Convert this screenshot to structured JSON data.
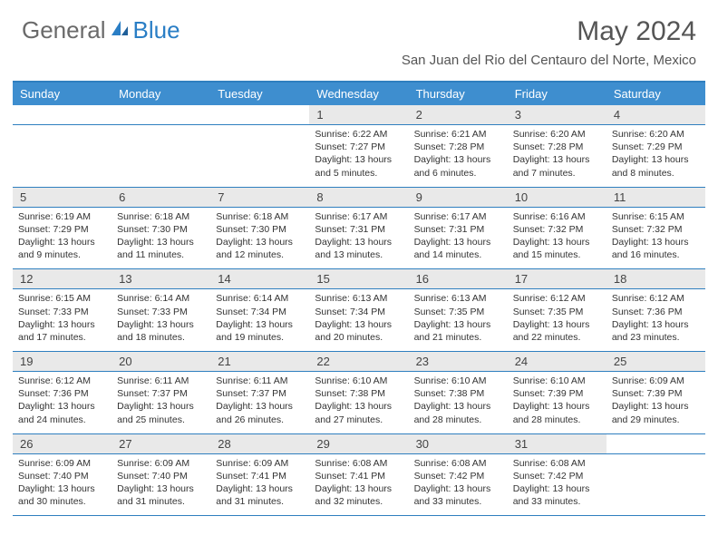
{
  "logo": {
    "text1": "General",
    "text2": "Blue"
  },
  "title": "May 2024",
  "location": "San Juan del Rio del Centauro del Norte, Mexico",
  "colors": {
    "header_bg": "#3e8ecf",
    "header_border": "#2f7fbf",
    "daynum_bg": "#e9e9e9",
    "logo_gray": "#6a6a6a",
    "logo_blue": "#2a7ec5"
  },
  "day_names": [
    "Sunday",
    "Monday",
    "Tuesday",
    "Wednesday",
    "Thursday",
    "Friday",
    "Saturday"
  ],
  "weeks": [
    [
      null,
      null,
      null,
      {
        "n": "1",
        "sr": "6:22 AM",
        "ss": "7:27 PM",
        "dl": "13 hours and 5 minutes."
      },
      {
        "n": "2",
        "sr": "6:21 AM",
        "ss": "7:28 PM",
        "dl": "13 hours and 6 minutes."
      },
      {
        "n": "3",
        "sr": "6:20 AM",
        "ss": "7:28 PM",
        "dl": "13 hours and 7 minutes."
      },
      {
        "n": "4",
        "sr": "6:20 AM",
        "ss": "7:29 PM",
        "dl": "13 hours and 8 minutes."
      }
    ],
    [
      {
        "n": "5",
        "sr": "6:19 AM",
        "ss": "7:29 PM",
        "dl": "13 hours and 9 minutes."
      },
      {
        "n": "6",
        "sr": "6:18 AM",
        "ss": "7:30 PM",
        "dl": "13 hours and 11 minutes."
      },
      {
        "n": "7",
        "sr": "6:18 AM",
        "ss": "7:30 PM",
        "dl": "13 hours and 12 minutes."
      },
      {
        "n": "8",
        "sr": "6:17 AM",
        "ss": "7:31 PM",
        "dl": "13 hours and 13 minutes."
      },
      {
        "n": "9",
        "sr": "6:17 AM",
        "ss": "7:31 PM",
        "dl": "13 hours and 14 minutes."
      },
      {
        "n": "10",
        "sr": "6:16 AM",
        "ss": "7:32 PM",
        "dl": "13 hours and 15 minutes."
      },
      {
        "n": "11",
        "sr": "6:15 AM",
        "ss": "7:32 PM",
        "dl": "13 hours and 16 minutes."
      }
    ],
    [
      {
        "n": "12",
        "sr": "6:15 AM",
        "ss": "7:33 PM",
        "dl": "13 hours and 17 minutes."
      },
      {
        "n": "13",
        "sr": "6:14 AM",
        "ss": "7:33 PM",
        "dl": "13 hours and 18 minutes."
      },
      {
        "n": "14",
        "sr": "6:14 AM",
        "ss": "7:34 PM",
        "dl": "13 hours and 19 minutes."
      },
      {
        "n": "15",
        "sr": "6:13 AM",
        "ss": "7:34 PM",
        "dl": "13 hours and 20 minutes."
      },
      {
        "n": "16",
        "sr": "6:13 AM",
        "ss": "7:35 PM",
        "dl": "13 hours and 21 minutes."
      },
      {
        "n": "17",
        "sr": "6:12 AM",
        "ss": "7:35 PM",
        "dl": "13 hours and 22 minutes."
      },
      {
        "n": "18",
        "sr": "6:12 AM",
        "ss": "7:36 PM",
        "dl": "13 hours and 23 minutes."
      }
    ],
    [
      {
        "n": "19",
        "sr": "6:12 AM",
        "ss": "7:36 PM",
        "dl": "13 hours and 24 minutes."
      },
      {
        "n": "20",
        "sr": "6:11 AM",
        "ss": "7:37 PM",
        "dl": "13 hours and 25 minutes."
      },
      {
        "n": "21",
        "sr": "6:11 AM",
        "ss": "7:37 PM",
        "dl": "13 hours and 26 minutes."
      },
      {
        "n": "22",
        "sr": "6:10 AM",
        "ss": "7:38 PM",
        "dl": "13 hours and 27 minutes."
      },
      {
        "n": "23",
        "sr": "6:10 AM",
        "ss": "7:38 PM",
        "dl": "13 hours and 28 minutes."
      },
      {
        "n": "24",
        "sr": "6:10 AM",
        "ss": "7:39 PM",
        "dl": "13 hours and 28 minutes."
      },
      {
        "n": "25",
        "sr": "6:09 AM",
        "ss": "7:39 PM",
        "dl": "13 hours and 29 minutes."
      }
    ],
    [
      {
        "n": "26",
        "sr": "6:09 AM",
        "ss": "7:40 PM",
        "dl": "13 hours and 30 minutes."
      },
      {
        "n": "27",
        "sr": "6:09 AM",
        "ss": "7:40 PM",
        "dl": "13 hours and 31 minutes."
      },
      {
        "n": "28",
        "sr": "6:09 AM",
        "ss": "7:41 PM",
        "dl": "13 hours and 31 minutes."
      },
      {
        "n": "29",
        "sr": "6:08 AM",
        "ss": "7:41 PM",
        "dl": "13 hours and 32 minutes."
      },
      {
        "n": "30",
        "sr": "6:08 AM",
        "ss": "7:42 PM",
        "dl": "13 hours and 33 minutes."
      },
      {
        "n": "31",
        "sr": "6:08 AM",
        "ss": "7:42 PM",
        "dl": "13 hours and 33 minutes."
      },
      null
    ]
  ],
  "labels": {
    "sunrise_prefix": "Sunrise: ",
    "sunset_prefix": "Sunset: ",
    "daylight_prefix": "Daylight: "
  }
}
